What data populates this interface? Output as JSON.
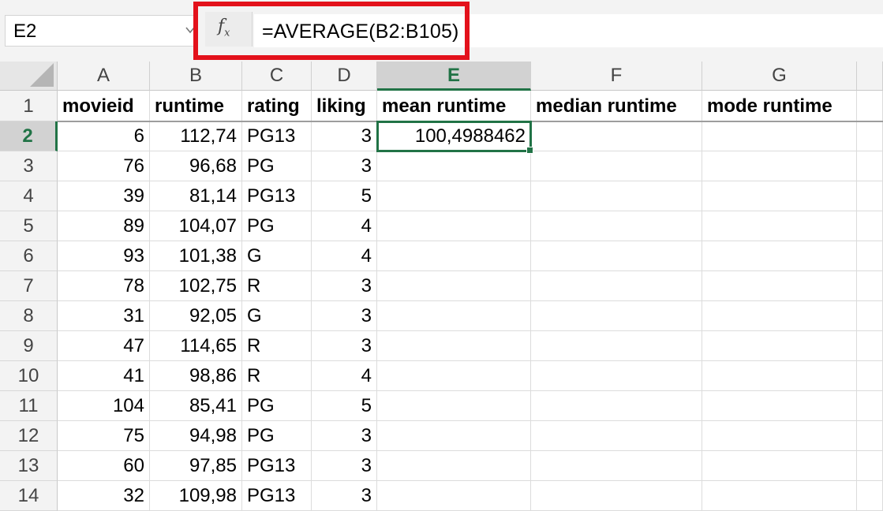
{
  "formula_bar": {
    "name_box": "E2",
    "fx_label": "fx",
    "formula": "=AVERAGE(B2:B105)"
  },
  "colors": {
    "accent": "#217346",
    "highlight": "#e3111b"
  },
  "active_cell": "E2",
  "columns": [
    "A",
    "B",
    "C",
    "D",
    "E",
    "F",
    "G"
  ],
  "header_row": [
    "movieid",
    "runtime",
    "rating",
    "liking",
    "mean runtime",
    "median runtime",
    "mode runtime"
  ],
  "rows": [
    {
      "num": "2",
      "cells": [
        "6",
        "112,74",
        "PG13",
        "3",
        "100,4988462",
        "",
        ""
      ]
    },
    {
      "num": "3",
      "cells": [
        "76",
        "96,68",
        "PG",
        "3",
        "",
        "",
        ""
      ]
    },
    {
      "num": "4",
      "cells": [
        "39",
        "81,14",
        "PG13",
        "5",
        "",
        "",
        ""
      ]
    },
    {
      "num": "5",
      "cells": [
        "89",
        "104,07",
        "PG",
        "4",
        "",
        "",
        ""
      ]
    },
    {
      "num": "6",
      "cells": [
        "93",
        "101,38",
        "G",
        "4",
        "",
        "",
        ""
      ]
    },
    {
      "num": "7",
      "cells": [
        "78",
        "102,75",
        "R",
        "3",
        "",
        "",
        ""
      ]
    },
    {
      "num": "8",
      "cells": [
        "31",
        "92,05",
        "G",
        "3",
        "",
        "",
        ""
      ]
    },
    {
      "num": "9",
      "cells": [
        "47",
        "114,65",
        "R",
        "3",
        "",
        "",
        ""
      ]
    },
    {
      "num": "10",
      "cells": [
        "41",
        "98,86",
        "R",
        "4",
        "",
        "",
        ""
      ]
    },
    {
      "num": "11",
      "cells": [
        "104",
        "85,41",
        "PG",
        "5",
        "",
        "",
        ""
      ]
    },
    {
      "num": "12",
      "cells": [
        "75",
        "94,98",
        "PG",
        "3",
        "",
        "",
        ""
      ]
    },
    {
      "num": "13",
      "cells": [
        "60",
        "97,85",
        "PG13",
        "3",
        "",
        "",
        ""
      ]
    },
    {
      "num": "14",
      "cells": [
        "32",
        "109,98",
        "PG13",
        "3",
        "",
        "",
        ""
      ]
    }
  ]
}
